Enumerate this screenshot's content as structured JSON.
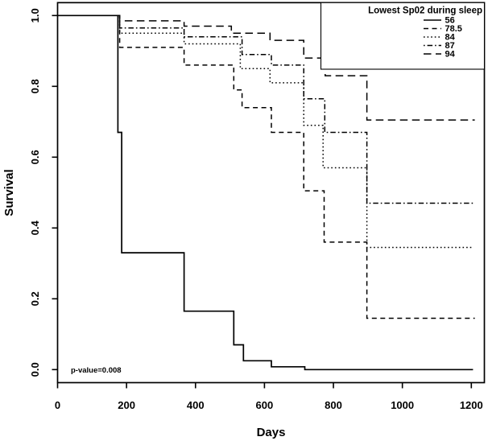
{
  "figure": {
    "colors": {
      "foreground": "#000000",
      "background": "#ffffff"
    }
  },
  "chart_data": {
    "type": "line",
    "variant": "kaplan_meier_step_survival",
    "title": "",
    "xlabel": "Days",
    "ylabel": "Survival",
    "xlim": [
      0,
      1241
    ],
    "ylim": [
      -0.036,
      1.036
    ],
    "grid": false,
    "x_ticks": {
      "values": [
        0,
        200,
        400,
        600,
        800,
        1000,
        1200
      ],
      "labels": [
        "0",
        "200",
        "400",
        "600",
        "800",
        "1000",
        "1200"
      ]
    },
    "y_ticks": {
      "values": [
        0,
        0.2,
        0.4,
        0.6,
        0.8,
        1.0
      ],
      "labels": [
        "0.0",
        "0.2",
        "0.4",
        "0.6",
        "0.8",
        "1.0"
      ]
    },
    "annotation": {
      "text": "p-value=0.008"
    },
    "legend": {
      "title": "Lowest Sp02 during sleep",
      "position": "topright",
      "border": true,
      "entries": [
        {
          "label": "56",
          "linetype": "solid"
        },
        {
          "label": "78.5",
          "linetype": "dashed"
        },
        {
          "label": "84",
          "linetype": "dotted"
        },
        {
          "label": "87",
          "linetype": "dotdash"
        },
        {
          "label": "94",
          "linetype": "longdash"
        }
      ]
    },
    "series": [
      {
        "label": "56",
        "linetype": "solid",
        "end_day": 1205,
        "steps": [
          [
            0,
            1.0
          ],
          [
            175,
            0.67
          ],
          [
            186,
            0.33
          ],
          [
            367,
            0.165
          ],
          [
            511,
            0.07
          ],
          [
            539,
            0.025
          ],
          [
            620,
            0.008
          ],
          [
            717,
            0.0
          ]
        ]
      },
      {
        "label": "78.5",
        "linetype": "dashed",
        "end_day": 1210,
        "steps": [
          [
            0,
            1.0
          ],
          [
            180,
            0.91
          ],
          [
            367,
            0.86
          ],
          [
            511,
            0.79
          ],
          [
            535,
            0.74
          ],
          [
            620,
            0.67
          ],
          [
            714,
            0.505
          ],
          [
            773,
            0.36
          ],
          [
            897,
            0.145
          ]
        ]
      },
      {
        "label": "84",
        "linetype": "dotted",
        "end_day": 1200,
        "steps": [
          [
            0,
            1.0
          ],
          [
            180,
            0.95
          ],
          [
            367,
            0.92
          ],
          [
            530,
            0.85
          ],
          [
            616,
            0.81
          ],
          [
            714,
            0.69
          ],
          [
            770,
            0.57
          ],
          [
            897,
            0.345
          ]
        ]
      },
      {
        "label": "87",
        "linetype": "dotdash",
        "end_day": 1210,
        "steps": [
          [
            0,
            1.0
          ],
          [
            180,
            0.965
          ],
          [
            367,
            0.94
          ],
          [
            535,
            0.89
          ],
          [
            620,
            0.86
          ],
          [
            714,
            0.765
          ],
          [
            775,
            0.67
          ],
          [
            897,
            0.47
          ]
        ]
      },
      {
        "label": "94",
        "linetype": "longdash",
        "end_day": 1210,
        "steps": [
          [
            0,
            1.0
          ],
          [
            180,
            0.985
          ],
          [
            367,
            0.97
          ],
          [
            504,
            0.95
          ],
          [
            616,
            0.93
          ],
          [
            714,
            0.88
          ],
          [
            776,
            0.83
          ],
          [
            897,
            0.705
          ]
        ]
      }
    ]
  }
}
